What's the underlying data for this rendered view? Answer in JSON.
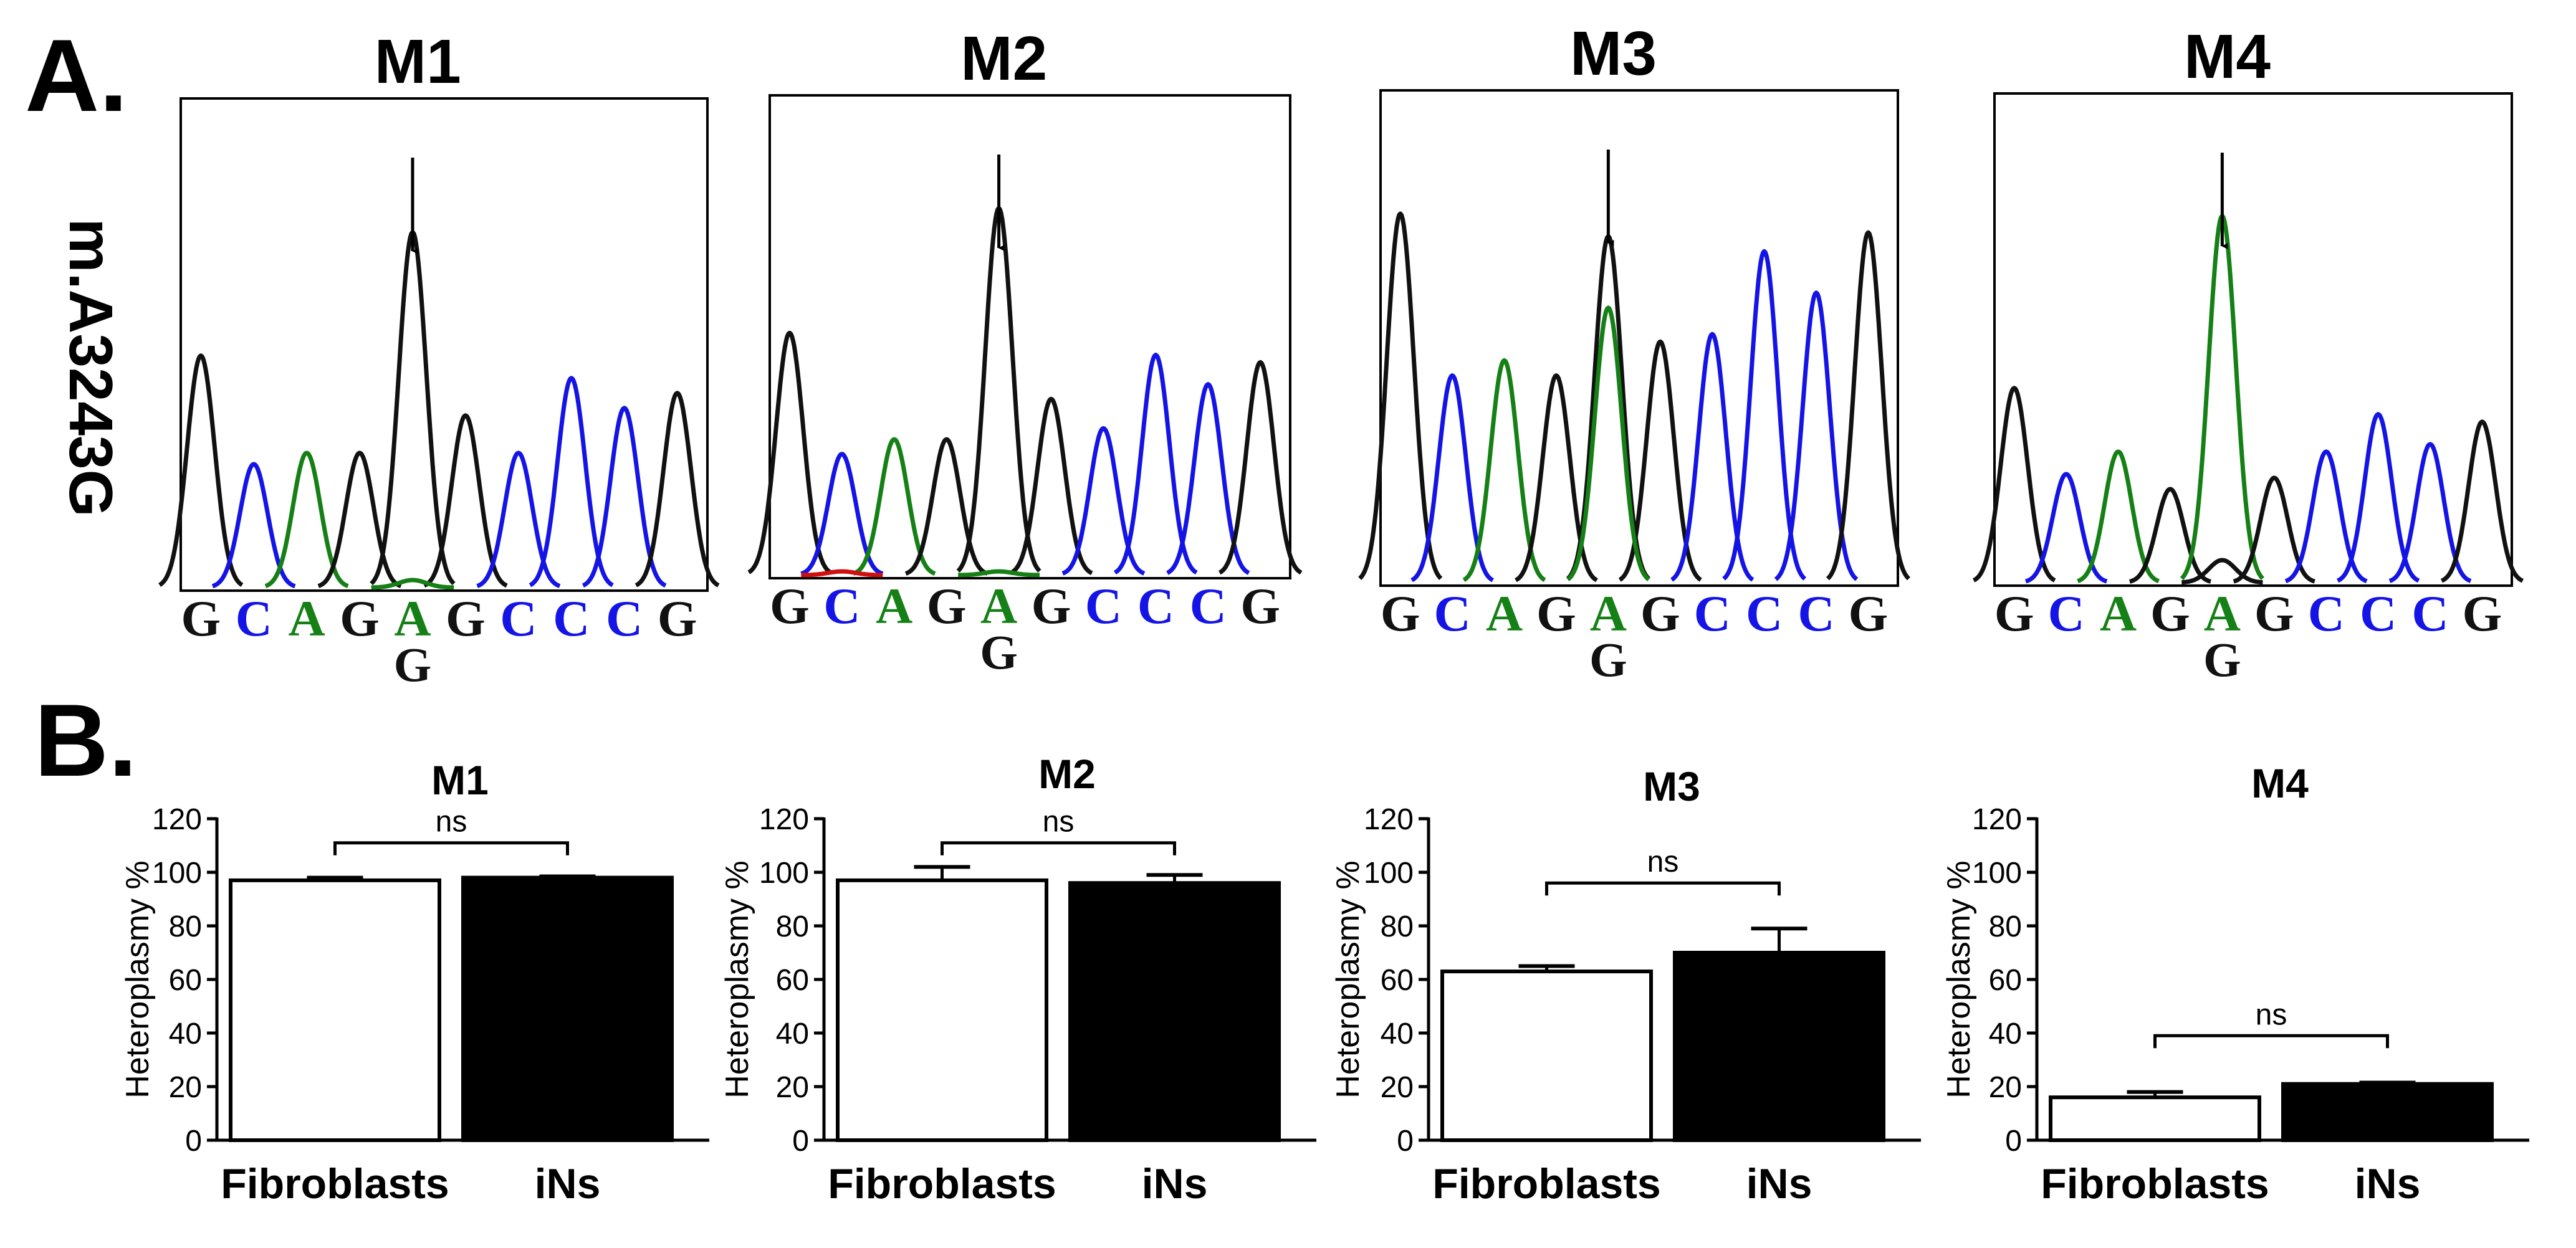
{
  "figure": {
    "panel_a_label": "A.",
    "panel_b_label": "B.",
    "mutation_label": "m.A3243G"
  },
  "colors": {
    "G": "#111111",
    "C": "#1414e6",
    "A": "#158015",
    "T": "#d01010",
    "bar_fibroblasts": "#ffffff",
    "bar_ins": "#000000"
  },
  "chromatograms": [
    {
      "title": "M1",
      "bases": [
        "G",
        "C",
        "A",
        "G",
        "A",
        "G",
        "C",
        "C",
        "C",
        "G"
      ],
      "alt_base": "G",
      "mutant_index": 4,
      "peaks": [
        [
          0,
          "G",
          0.62
        ],
        [
          1,
          "C",
          0.33
        ],
        [
          2,
          "A",
          0.36
        ],
        [
          3,
          "G",
          0.36
        ],
        [
          4,
          "G",
          0.95
        ],
        [
          5,
          "G",
          0.46
        ],
        [
          6,
          "C",
          0.36
        ],
        [
          7,
          "C",
          0.56
        ],
        [
          8,
          "C",
          0.48
        ],
        [
          9,
          "G",
          0.52
        ],
        [
          4,
          "A",
          0.02
        ]
      ]
    },
    {
      "title": "M2",
      "bases": [
        "G",
        "C",
        "A",
        "G",
        "A",
        "G",
        "C",
        "C",
        "C",
        "G"
      ],
      "alt_base": "G",
      "mutant_index": 4,
      "peaks": [
        [
          0,
          "G",
          0.66
        ],
        [
          1,
          "C",
          0.33
        ],
        [
          2,
          "A",
          0.37
        ],
        [
          3,
          "G",
          0.37
        ],
        [
          4,
          "G",
          1.0
        ],
        [
          5,
          "G",
          0.48
        ],
        [
          6,
          "C",
          0.4
        ],
        [
          7,
          "C",
          0.6
        ],
        [
          8,
          "C",
          0.52
        ],
        [
          9,
          "G",
          0.58
        ],
        [
          4,
          "A",
          0.01
        ],
        [
          1,
          "T",
          0.01
        ]
      ]
    },
    {
      "title": "M3",
      "bases": [
        "G",
        "C",
        "A",
        "G",
        "A",
        "G",
        "C",
        "C",
        "C",
        "G"
      ],
      "alt_base": "G",
      "mutant_index": 4,
      "peaks": [
        [
          0,
          "G",
          0.98
        ],
        [
          1,
          "C",
          0.55
        ],
        [
          2,
          "A",
          0.59
        ],
        [
          3,
          "G",
          0.55
        ],
        [
          4,
          "G",
          0.92
        ],
        [
          5,
          "G",
          0.64
        ],
        [
          6,
          "C",
          0.66
        ],
        [
          7,
          "C",
          0.88
        ],
        [
          8,
          "C",
          0.77
        ],
        [
          9,
          "G",
          0.93
        ],
        [
          4,
          "A",
          0.73
        ]
      ]
    },
    {
      "title": "M4",
      "bases": [
        "G",
        "C",
        "A",
        "G",
        "A",
        "G",
        "C",
        "C",
        "C",
        "G"
      ],
      "alt_base": "G",
      "mutant_index": 4,
      "peaks": [
        [
          0,
          "G",
          0.52
        ],
        [
          1,
          "C",
          0.29
        ],
        [
          2,
          "A",
          0.35
        ],
        [
          3,
          "G",
          0.25
        ],
        [
          4,
          "A",
          0.98
        ],
        [
          5,
          "G",
          0.28
        ],
        [
          6,
          "C",
          0.35
        ],
        [
          7,
          "C",
          0.45
        ],
        [
          8,
          "C",
          0.37
        ],
        [
          9,
          "G",
          0.43
        ],
        [
          4,
          "G",
          0.06
        ]
      ]
    }
  ],
  "chart_data": [
    {
      "type": "bar",
      "title": "M1",
      "ylabel": "Heteroplasmy %",
      "ylim": [
        0,
        120
      ],
      "yticks": [
        0,
        20,
        40,
        60,
        80,
        100,
        120
      ],
      "categories": [
        "Fibroblasts",
        "iNs"
      ],
      "values": [
        97,
        98
      ],
      "errors": [
        1,
        0.5
      ],
      "annotation": "ns",
      "bracket_y": 111
    },
    {
      "type": "bar",
      "title": "M2",
      "ylabel": "Heteroplasmy %",
      "ylim": [
        0,
        120
      ],
      "yticks": [
        0,
        20,
        40,
        60,
        80,
        100,
        120
      ],
      "categories": [
        "Fibroblasts",
        "iNs"
      ],
      "values": [
        97,
        96
      ],
      "errors": [
        5,
        3
      ],
      "annotation": "ns",
      "bracket_y": 111
    },
    {
      "type": "bar",
      "title": "M3",
      "ylabel": "Heteroplasmy %",
      "ylim": [
        0,
        120
      ],
      "yticks": [
        0,
        20,
        40,
        60,
        80,
        100,
        120
      ],
      "categories": [
        "Fibroblasts",
        "iNs"
      ],
      "values": [
        63,
        70
      ],
      "errors": [
        2,
        9
      ],
      "annotation": "ns",
      "bracket_y": 96
    },
    {
      "type": "bar",
      "title": "M4",
      "ylabel": "Heteroplasmy %",
      "ylim": [
        0,
        120
      ],
      "yticks": [
        0,
        20,
        40,
        60,
        80,
        100,
        120
      ],
      "categories": [
        "Fibroblasts",
        "iNs"
      ],
      "values": [
        16,
        21
      ],
      "errors": [
        2,
        0.5
      ],
      "annotation": "ns",
      "bracket_y": 39
    }
  ]
}
